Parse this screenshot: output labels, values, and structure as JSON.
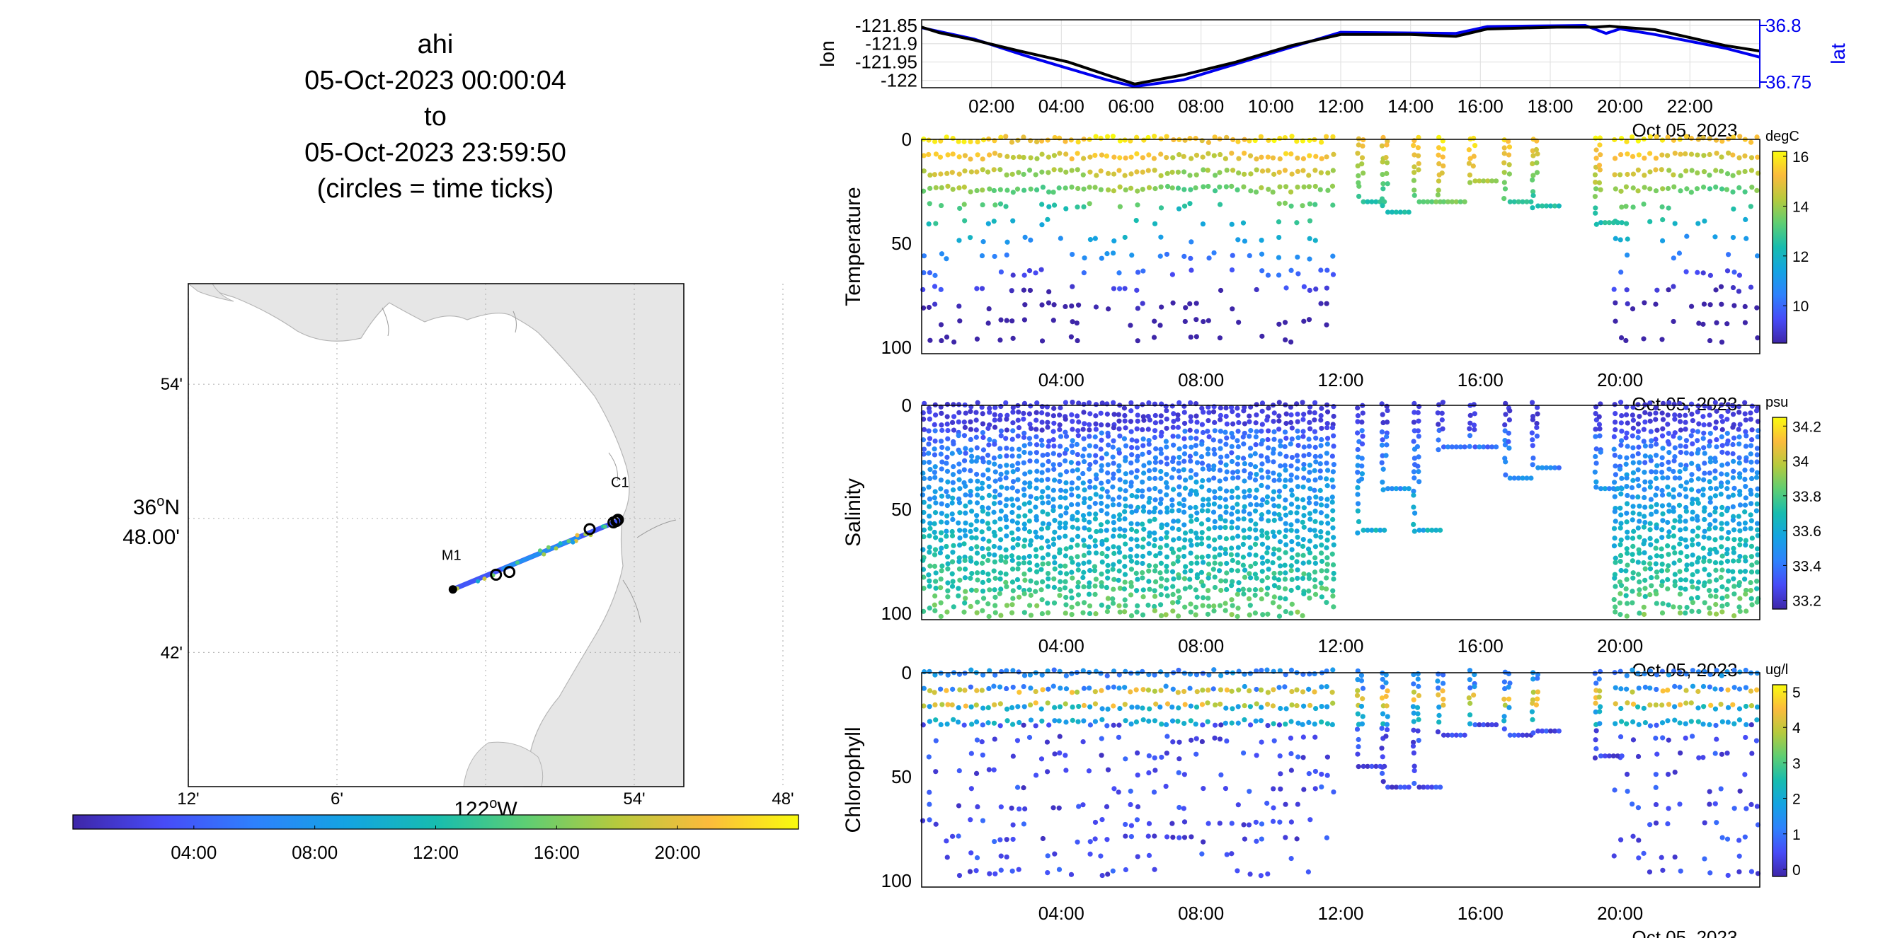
{
  "title": {
    "platform": "ahi",
    "start": "05-Oct-2023 00:00:04",
    "to": "to",
    "end": "05-Oct-2023 23:59:50",
    "note": "(circles = time ticks)"
  },
  "colors": {
    "lat_axis": "#0000ee",
    "track": "#000000",
    "land": "#e6e6e6"
  },
  "chart_data": [
    {
      "type": "scatter",
      "panel": "map",
      "xlim_minutes_west_of_122W": [
        -12,
        8
      ],
      "ylim_minutes_north_of_36N": [
        36,
        58.5
      ],
      "x_tick_labels": [
        "12'",
        "6'",
        "54'",
        "48'"
      ],
      "x_tick_minutes": [
        -12,
        -6,
        6,
        12
      ],
      "x_center_label": "122",
      "x_center_suffix": "W",
      "y_tick_labels": [
        "54'",
        "42'"
      ],
      "y_tick_minutes": [
        54,
        42
      ],
      "y_center_deg": "36",
      "y_center_suffix": "N",
      "y_center_sub": "48.00'",
      "stations": [
        {
          "name": "M1",
          "lon": -122.022,
          "lat": 36.747
        },
        {
          "name": "C1",
          "lon": -121.912,
          "lat": 36.797
        }
      ],
      "track_start": {
        "lon": -122.022,
        "lat": 36.747
      },
      "track_end": {
        "lon": -121.909,
        "lat": 36.799
      },
      "time_ticks": [
        {
          "lon": -121.993,
          "lat": 36.758
        },
        {
          "lon": -121.984,
          "lat": 36.76
        },
        {
          "lon": -121.93,
          "lat": 36.792
        },
        {
          "lon": -121.914,
          "lat": 36.797
        },
        {
          "lon": -121.912,
          "lat": 36.798
        },
        {
          "lon": -121.911,
          "lat": 36.799
        }
      ],
      "colorbar": {
        "tick_labels": [
          "04:00",
          "08:00",
          "12:00",
          "16:00",
          "20:00"
        ],
        "tick_hours": [
          4,
          8,
          12,
          16,
          20
        ],
        "range_hours": [
          0,
          24
        ]
      },
      "grid": true
    },
    {
      "type": "line",
      "panel": "position",
      "ylabel_left": "lon",
      "ylabel_right": "lat",
      "xlim_hours": [
        0,
        24
      ],
      "x_tick_labels": [
        "02:00",
        "04:00",
        "06:00",
        "08:00",
        "10:00",
        "12:00",
        "14:00",
        "16:00",
        "18:00",
        "20:00",
        "22:00"
      ],
      "x_tick_hours": [
        2,
        4,
        6,
        8,
        10,
        12,
        14,
        16,
        18,
        20,
        22
      ],
      "date_label": "Oct 05, 2023",
      "lon_ylim": [
        -122.02,
        -121.835
      ],
      "lon_tick_labels": [
        "-121.85",
        "-121.9",
        "-121.95",
        "-122"
      ],
      "lon_tick_values": [
        -121.85,
        -121.9,
        -121.95,
        -122
      ],
      "lat_ylim": [
        36.745,
        36.805
      ],
      "lat_tick_labels": [
        "36.8",
        "36.75"
      ],
      "lat_tick_values": [
        36.8,
        36.75
      ],
      "series": [
        {
          "name": "lon",
          "hours": [
            0,
            0.5,
            1.5,
            2.8,
            4.2,
            5.3,
            6.1,
            7.5,
            9.0,
            10.6,
            12.0,
            14.0,
            15.3,
            16.2,
            18.2,
            19.3,
            19.7,
            20.0,
            21.0,
            23.0,
            24.0
          ],
          "values": [
            -121.855,
            -121.87,
            -121.89,
            -121.92,
            -121.95,
            -121.985,
            -122.01,
            -121.985,
            -121.95,
            -121.905,
            -121.875,
            -121.875,
            -121.88,
            -121.86,
            -121.855,
            -121.855,
            -121.852,
            -121.855,
            -121.862,
            -121.905,
            -121.92
          ]
        },
        {
          "name": "lat",
          "hours": [
            0,
            1.5,
            3.0,
            4.2,
            5.3,
            6.1,
            7.5,
            9.0,
            10.6,
            12.0,
            15.3,
            16.2,
            19.0,
            19.6,
            20.0,
            21.0,
            23.0,
            24.0
          ],
          "values": [
            36.798,
            36.788,
            36.773,
            36.762,
            36.752,
            36.746,
            36.752,
            36.766,
            36.781,
            36.794,
            36.793,
            36.799,
            36.8,
            36.793,
            36.797,
            36.792,
            36.78,
            36.772
          ]
        }
      ]
    },
    {
      "type": "scatter",
      "panel": "temperature",
      "ylabel": "Temperature",
      "xlim_hours": [
        0,
        24
      ],
      "ylim_depth": [
        0,
        103
      ],
      "y_tick_labels": [
        "0",
        "50",
        "100"
      ],
      "y_tick_values": [
        0,
        50,
        100
      ],
      "x_tick_labels": [
        "04:00",
        "08:00",
        "12:00",
        "16:00",
        "20:00"
      ],
      "x_tick_hours": [
        4,
        8,
        12,
        16,
        20
      ],
      "date_label": "Oct 05, 2023",
      "colorbar": {
        "unit": "degC",
        "tick_labels": [
          "16",
          "14",
          "12",
          "10"
        ],
        "tick_values": [
          16,
          14,
          12,
          10
        ],
        "clim": [
          8.5,
          16.2
        ]
      },
      "profiles": {
        "full_depth_hours": [
          [
            0,
            11.9
          ],
          [
            19.8,
            24
          ]
        ],
        "max_depth": 100,
        "shallow": [
          {
            "start_hour": 12.5,
            "max_depth": 30
          },
          {
            "start_hour": 13.2,
            "max_depth": 35
          },
          {
            "start_hour": 14.1,
            "max_depth": 30
          },
          {
            "start_hour": 14.8,
            "max_depth": 30
          },
          {
            "start_hour": 15.7,
            "max_depth": 20
          },
          {
            "start_hour": 16.7,
            "max_depth": 30
          },
          {
            "start_hour": 17.5,
            "max_depth": 32
          },
          {
            "start_hour": 19.3,
            "max_depth": 40
          }
        ]
      }
    },
    {
      "type": "scatter",
      "panel": "salinity",
      "ylabel": "Salinity",
      "xlim_hours": [
        0,
        24
      ],
      "ylim_depth": [
        0,
        103
      ],
      "y_tick_labels": [
        "0",
        "50",
        "100"
      ],
      "y_tick_values": [
        0,
        50,
        100
      ],
      "x_tick_labels": [
        "04:00",
        "08:00",
        "12:00",
        "16:00",
        "20:00"
      ],
      "x_tick_hours": [
        4,
        8,
        12,
        16,
        20
      ],
      "date_label": "Oct 05, 2023",
      "colorbar": {
        "unit": "psu",
        "tick_labels": [
          "34.2",
          "34",
          "33.8",
          "33.6",
          "33.4",
          "33.2"
        ],
        "tick_values": [
          34.2,
          34,
          33.8,
          33.6,
          33.4,
          33.2
        ],
        "clim": [
          33.15,
          34.25
        ]
      },
      "profiles": {
        "full_depth_hours": [
          [
            0,
            11.9
          ],
          [
            19.8,
            24
          ]
        ],
        "max_depth": 100,
        "shallow": [
          {
            "start_hour": 12.5,
            "max_depth": 60
          },
          {
            "start_hour": 13.2,
            "max_depth": 40
          },
          {
            "start_hour": 14.1,
            "max_depth": 60
          },
          {
            "start_hour": 14.8,
            "max_depth": 20
          },
          {
            "start_hour": 15.7,
            "max_depth": 20
          },
          {
            "start_hour": 16.7,
            "max_depth": 35
          },
          {
            "start_hour": 17.5,
            "max_depth": 30
          },
          {
            "start_hour": 19.3,
            "max_depth": 40
          }
        ]
      }
    },
    {
      "type": "scatter",
      "panel": "chlorophyll",
      "ylabel": "Chlorophyll",
      "xlim_hours": [
        0,
        24
      ],
      "ylim_depth": [
        0,
        103
      ],
      "y_tick_labels": [
        "0",
        "50",
        "100"
      ],
      "y_tick_values": [
        0,
        50,
        100
      ],
      "x_tick_labels": [
        "04:00",
        "08:00",
        "12:00",
        "16:00",
        "20:00"
      ],
      "x_tick_hours": [
        4,
        8,
        12,
        16,
        20
      ],
      "date_label": "Oct 05, 2023",
      "colorbar": {
        "unit": "ug/l",
        "tick_labels": [
          "5",
          "4",
          "3",
          "2",
          "1",
          "0"
        ],
        "tick_values": [
          5,
          4,
          3,
          2,
          1,
          0
        ],
        "clim": [
          -0.2,
          5.2
        ]
      },
      "profiles": {
        "full_depth_hours": [
          [
            0,
            11.9
          ],
          [
            19.8,
            24
          ]
        ],
        "max_depth": 100,
        "shallow": [
          {
            "start_hour": 12.5,
            "max_depth": 45
          },
          {
            "start_hour": 13.2,
            "max_depth": 55
          },
          {
            "start_hour": 14.1,
            "max_depth": 55
          },
          {
            "start_hour": 14.8,
            "max_depth": 30
          },
          {
            "start_hour": 15.7,
            "max_depth": 25
          },
          {
            "start_hour": 16.7,
            "max_depth": 30
          },
          {
            "start_hour": 17.5,
            "max_depth": 28
          },
          {
            "start_hour": 19.3,
            "max_depth": 40
          }
        ]
      }
    }
  ]
}
